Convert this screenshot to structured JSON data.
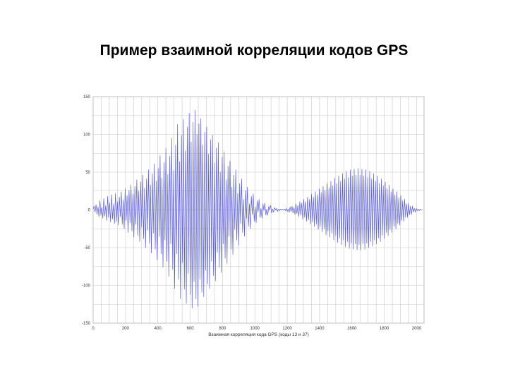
{
  "slide": {
    "title": "Пример взаимной корреляции кодов GPS"
  },
  "colors": {
    "series": "#5b5fd0",
    "grid": "#c8c8c8",
    "frame": "#aaaaaa",
    "background": "#ffffff"
  },
  "chart_data": {
    "type": "line",
    "title": "",
    "xlabel": "Взаимная корреляция кода GPS (коды 13 и 37)",
    "ylabel": "",
    "xlim": [
      0,
      2046
    ],
    "ylim": [
      -150,
      150
    ],
    "grid": true,
    "legend": "none",
    "x_ticks": [
      0,
      200,
      400,
      600,
      800,
      1000,
      1200,
      1400,
      1600,
      1800,
      2000
    ],
    "x_tick_labels": [
      "0",
      "200",
      "400",
      "600",
      "800",
      "1000",
      "1200",
      "1400",
      "1600",
      "1800",
      "2000"
    ],
    "y_ticks": [
      150,
      100,
      50,
      0,
      -50,
      -100,
      -150
    ],
    "y_tick_labels": [
      "150",
      "100",
      "50",
      "0",
      "-50",
      "-100",
      "-150"
    ],
    "x_minor_step": 50,
    "y_minor_step": 25,
    "series": [
      {
        "x_start": 0,
        "x_step": 6,
        "values": [
          1,
          5,
          -3,
          7,
          -6,
          4,
          -9,
          12,
          -7,
          3,
          -11,
          15,
          -8,
          6,
          -14,
          18,
          -10,
          9,
          -16,
          20,
          -12,
          8,
          -18,
          22,
          -15,
          11,
          -20,
          17,
          -9,
          24,
          -19,
          13,
          -25,
          28,
          -14,
          19,
          -30,
          26,
          -17,
          33,
          -28,
          21,
          -36,
          31,
          -19,
          40,
          -34,
          25,
          -42,
          37,
          -23,
          46,
          -38,
          29,
          -50,
          41,
          -27,
          53,
          -44,
          33,
          -57,
          48,
          -31,
          61,
          -52,
          38,
          -66,
          55,
          -35,
          72,
          -58,
          42,
          -76,
          63,
          -40,
          82,
          -68,
          47,
          -88,
          71,
          -45,
          95,
          -79,
          52,
          -104,
          86,
          -58,
          113,
          -92,
          64,
          -118,
          99,
          -70,
          120,
          -105,
          78,
          -124,
          110,
          -84,
          128,
          -112,
          90,
          -130,
          116,
          -95,
          132,
          -118,
          100,
          -128,
          114,
          -92,
          121,
          -109,
          86,
          -115,
          103,
          -80,
          110,
          -98,
          74,
          -104,
          93,
          -68,
          99,
          -87,
          62,
          -94,
          82,
          -56,
          89,
          -76,
          50,
          -83,
          70,
          -45,
          77,
          -64,
          40,
          -71,
          58,
          -35,
          65,
          -52,
          30,
          -59,
          46,
          -26,
          53,
          -40,
          22,
          -47,
          35,
          -18,
          41,
          -30,
          14,
          -35,
          26,
          -11,
          30,
          -22,
          8,
          -25,
          18,
          -6,
          21,
          -15,
          4,
          -17,
          12,
          -3,
          14,
          -10,
          2,
          -11,
          8,
          -1,
          9,
          -7,
          1,
          -7,
          5,
          0,
          6,
          -4,
          1,
          -3,
          3,
          0,
          2,
          -2,
          1,
          -1,
          1,
          0,
          1,
          0,
          1,
          -1,
          2,
          -2,
          1,
          -3,
          4,
          -2,
          5,
          -4,
          3,
          -6,
          8,
          -5,
          6,
          -9,
          11,
          -7,
          9,
          -12,
          14,
          -10,
          11,
          -15,
          17,
          -13,
          14,
          -19,
          21,
          -16,
          17,
          -22,
          24,
          -19,
          20,
          -26,
          28,
          -22,
          23,
          -29,
          31,
          -25,
          26,
          -33,
          35,
          -28,
          29,
          -36,
          38,
          -31,
          32,
          -40,
          42,
          -34,
          35,
          -43,
          45,
          -37,
          38,
          -46,
          48,
          -40,
          41,
          -49,
          51,
          -42,
          43,
          -51,
          53,
          -44,
          45,
          -52,
          54,
          -45,
          46,
          -53,
          55,
          -46,
          46,
          -53,
          54,
          -45,
          45,
          -52,
          53,
          -44,
          43,
          -50,
          51,
          -42,
          41,
          -48,
          48,
          -40,
          38,
          -45,
          45,
          -37,
          35,
          -42,
          41,
          -34,
          32,
          -38,
          37,
          -30,
          28,
          -34,
          33,
          -26,
          24,
          -30,
          28,
          -22,
          20,
          -25,
          24,
          -18,
          16,
          -20,
          19,
          -14,
          12,
          -15,
          14,
          -10,
          8,
          -10,
          9,
          -6,
          5,
          -6,
          5,
          -3,
          2,
          -3,
          2,
          -1,
          1,
          -1,
          1,
          0,
          0
        ]
      }
    ]
  }
}
